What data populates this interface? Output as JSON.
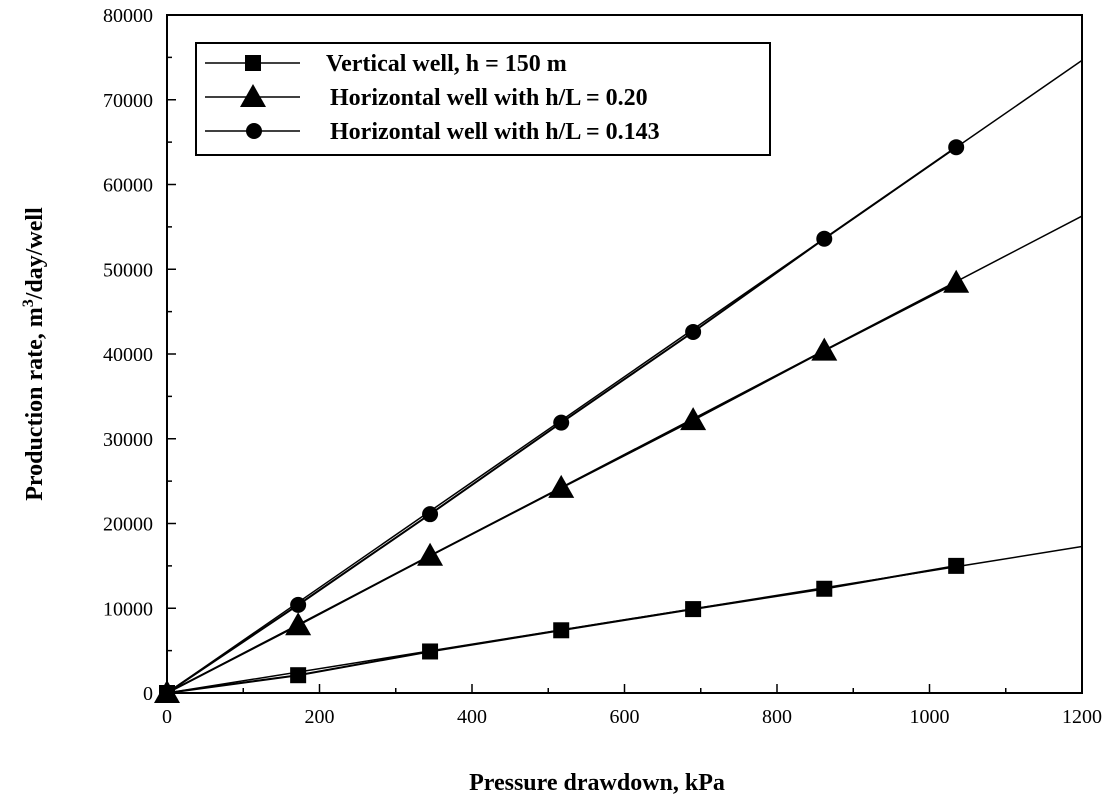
{
  "chart_data": {
    "type": "line",
    "xlabel": "Pressure drawdown, kPa",
    "ylabel": "Production rate, m",
    "ylabel_sup": "3",
    "ylabel_suffix": "/day/well",
    "xlim": [
      0,
      1200
    ],
    "ylim": [
      0,
      80000
    ],
    "x_ticks": [
      0,
      200,
      400,
      600,
      800,
      1000,
      1200
    ],
    "y_ticks": [
      0,
      10000,
      20000,
      30000,
      40000,
      50000,
      60000,
      70000,
      80000
    ],
    "grid": false,
    "legend_position": "top-left",
    "series": [
      {
        "name": "Vertical well, h = 150 m",
        "marker": "square",
        "x": [
          0,
          172,
          345,
          517,
          690,
          862,
          1035
        ],
        "y": [
          0,
          2100,
          4900,
          7400,
          9900,
          12300,
          15000
        ],
        "fit_slope": 14.4
      },
      {
        "name": "Horizontal well with h/L = 0.20",
        "marker": "triangle",
        "x": [
          0,
          172,
          345,
          517,
          690,
          862,
          1035
        ],
        "y": [
          0,
          8000,
          16200,
          24200,
          32200,
          40400,
          48400
        ],
        "fit_slope": 46.9
      },
      {
        "name": "Horizontal well with h/L = 0.143",
        "marker": "circle",
        "x": [
          0,
          172,
          345,
          517,
          690,
          862,
          1035
        ],
        "y": [
          0,
          10400,
          21100,
          31900,
          42600,
          53600,
          64400
        ],
        "fit_slope": 62.2
      }
    ]
  }
}
